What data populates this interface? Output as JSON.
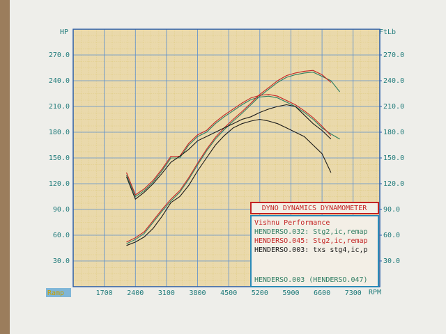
{
  "chart_data": {
    "type": "line",
    "y_label": "HP",
    "y2_label": "FtLb",
    "x_label": "RPM",
    "mode_label": "Ramp",
    "xlim": [
      1000,
      7900
    ],
    "xticks": [
      1700,
      2400,
      3100,
      3800,
      4500,
      5200,
      5900,
      6600,
      7300
    ],
    "ylim": [
      0,
      300
    ],
    "yticks": [
      {
        "value": 30,
        "label": "30.0"
      },
      {
        "value": 60,
        "label": "60.0"
      },
      {
        "value": 90,
        "label": "90.0"
      },
      {
        "value": 120,
        "label": "120.0"
      },
      {
        "value": 150,
        "label": "150.0"
      },
      {
        "value": 180,
        "label": "180.0"
      },
      {
        "value": 210,
        "label": "210.0"
      },
      {
        "value": 240,
        "label": "240.0"
      },
      {
        "value": 270,
        "label": "270.0"
      }
    ],
    "y2lim": [
      0,
      300
    ],
    "y2ticks": [
      {
        "value": 30,
        "label": "30.0"
      },
      {
        "value": 60,
        "label": "60.0"
      },
      {
        "value": 90,
        "label": "90.0"
      },
      {
        "value": 120,
        "label": "120.0"
      },
      {
        "value": 150,
        "label": "150.0"
      },
      {
        "value": 180,
        "label": "180.0"
      },
      {
        "value": 210,
        "label": "210.0"
      },
      {
        "value": 240,
        "label": "240.0"
      },
      {
        "value": 270,
        "label": "270.0"
      }
    ],
    "grid": true,
    "x": [
      2200,
      2400,
      2600,
      2800,
      3000,
      3200,
      3400,
      3600,
      3800,
      4000,
      4200,
      4400,
      4600,
      4800,
      5000,
      5200,
      5400,
      5600,
      5800,
      6000,
      6200,
      6400,
      6600,
      6800,
      7000
    ],
    "legend": {
      "title": "DYNO DYNAMICS DYNAMOMETER",
      "company": "Vishnu Performance",
      "footer": "HENDERSO.003 (HENDERSO.047)"
    },
    "series": [
      {
        "name": "HENDERSO.032: Stg2,ic,remap",
        "color": "#2e7d62",
        "values": [
          50,
          55,
          62,
          75,
          88,
          100,
          110,
          125,
          142,
          158,
          172,
          183,
          193,
          202,
          212,
          222,
          230,
          238,
          244,
          247,
          249,
          250,
          245,
          240,
          227
        ],
        "torque_values": [
          130,
          105,
          112,
          122,
          135,
          150,
          150,
          165,
          175,
          180,
          190,
          198,
          205,
          212,
          218,
          221,
          222,
          220,
          215,
          210,
          203,
          195,
          185,
          178,
          172
        ]
      },
      {
        "name": "HENDERSO.045: Stg2,ic,remap",
        "color": "#c42424",
        "values": [
          52,
          57,
          64,
          77,
          90,
          102,
          112,
          127,
          144,
          160,
          174,
          185,
          195,
          204,
          214,
          224,
          232,
          240,
          246,
          249,
          251,
          252,
          247,
          238,
          null
        ],
        "torque_values": [
          133,
          107,
          114,
          124,
          137,
          152,
          152,
          167,
          177,
          182,
          192,
          200,
          207,
          214,
          220,
          223,
          224,
          222,
          217,
          212,
          205,
          197,
          187,
          176,
          null
        ]
      },
      {
        "name": "HENDERSO.003: txs stg4,ic,p",
        "color": "#1a1a1a",
        "values": [
          48,
          52,
          58,
          68,
          82,
          98,
          105,
          118,
          135,
          150,
          165,
          176,
          185,
          190,
          193,
          195,
          193,
          190,
          185,
          180,
          175,
          165,
          155,
          133,
          null
        ],
        "torque_values": [
          128,
          102,
          110,
          120,
          132,
          145,
          152,
          160,
          170,
          175,
          180,
          185,
          190,
          195,
          198,
          203,
          207,
          210,
          212,
          210,
          200,
          190,
          182,
          172,
          null
        ]
      }
    ]
  }
}
